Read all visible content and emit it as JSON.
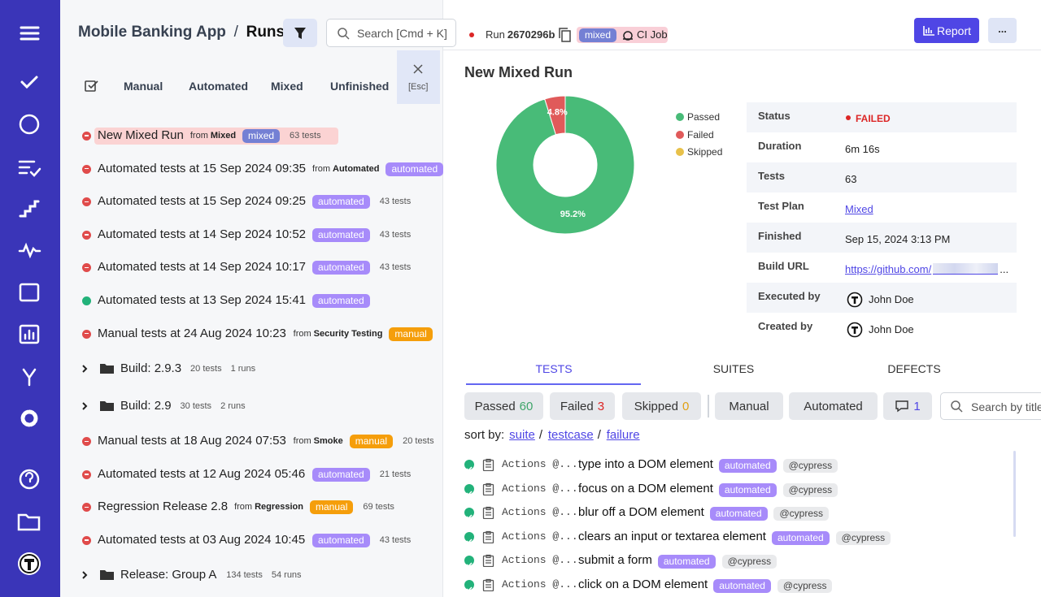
{
  "header": {
    "breadcrumb": [
      "Mobile Banking App",
      "Runs"
    ],
    "separator": "/",
    "search_placeholder": "Search [Cmd + K]"
  },
  "tabs": [
    "Manual",
    "Automated",
    "Mixed",
    "Unfinished"
  ],
  "close_hint": "[Esc]",
  "from_label": "from",
  "runs": [
    {
      "kind": "run",
      "status": "failed",
      "title": "New Mixed Run",
      "from": "Mixed",
      "tag": "mixed",
      "tests": "63 tests",
      "selected": true
    },
    {
      "kind": "run",
      "status": "failed",
      "title": "Automated tests at 15 Sep 2024 09:35",
      "from": "Automated",
      "tag": "automated"
    },
    {
      "kind": "run",
      "status": "failed",
      "title": "Automated tests at 15 Sep 2024 09:25",
      "tag": "automated",
      "tests": "43 tests"
    },
    {
      "kind": "run",
      "status": "failed",
      "title": "Automated tests at 14 Sep 2024 10:52",
      "tag": "automated",
      "tests": "43 tests"
    },
    {
      "kind": "run",
      "status": "failed",
      "title": "Automated tests at 14 Sep 2024 10:17",
      "tag": "automated",
      "tests": "43 tests"
    },
    {
      "kind": "run",
      "status": "passed",
      "title": "Automated tests at 13 Sep 2024 15:41",
      "tag": "automated"
    },
    {
      "kind": "run",
      "status": "failed",
      "title": "Manual tests at 24 Aug 2024 10:23",
      "from": "Security Testing",
      "tag": "manual"
    },
    {
      "kind": "folder",
      "title": "Build: 2.9.3",
      "tests": "20 tests",
      "runs": "1 runs"
    },
    {
      "kind": "folder",
      "title": "Build: 2.9",
      "tests": "30 tests",
      "runs": "2 runs"
    },
    {
      "kind": "run",
      "status": "failed",
      "title": "Manual tests at 18 Aug 2024 07:53",
      "from": "Smoke",
      "tag": "manual",
      "tests": "20 tests"
    },
    {
      "kind": "run",
      "status": "failed",
      "title": "Automated tests at 12 Aug 2024 05:46",
      "tag": "automated",
      "tests": "21 tests"
    },
    {
      "kind": "run",
      "status": "failed",
      "title": "Regression Release 2.8",
      "from": "Regression",
      "tag": "manual",
      "tests": "69 tests"
    },
    {
      "kind": "run",
      "status": "failed",
      "title": "Automated tests at 03 Aug 2024 10:45",
      "tag": "automated",
      "tests": "43 tests"
    },
    {
      "kind": "folder",
      "title": "Release: Group A",
      "tests": "134 tests",
      "runs": "54 runs"
    }
  ],
  "run": {
    "label": "Run",
    "id": "2670296b",
    "tag": "mixed",
    "job": "CI Job",
    "report": "Report",
    "more": "...",
    "title": "New Mixed Run"
  },
  "chart_data": {
    "type": "donut",
    "categories": [
      "Passed",
      "Failed",
      "Skipped"
    ],
    "values": [
      95.2,
      4.8,
      0
    ],
    "value_labels": [
      "95.2%",
      "4.8%",
      null
    ],
    "colors": [
      "#48bb78",
      "#e05a5a",
      "#e8c14a"
    ]
  },
  "details": [
    {
      "label": "Status",
      "value": "FAILED"
    },
    {
      "label": "Duration",
      "value": "6m 16s"
    },
    {
      "label": "Tests",
      "value": 63
    },
    {
      "label": "Test Plan",
      "value": "Mixed"
    },
    {
      "label": "Finished",
      "value": "Sep 15, 2024 3:13 PM"
    },
    {
      "label": "Build URL",
      "value": "https://github.com/",
      "suffix": "..."
    },
    {
      "label": "Executed by",
      "value": "John Doe"
    },
    {
      "label": "Created by",
      "value": "John Doe"
    }
  ],
  "result_tabs": [
    "TESTS",
    "SUITES",
    "DEFECTS"
  ],
  "filters": [
    {
      "label": "Passed",
      "count": 60
    },
    {
      "label": "Failed",
      "count": 3
    },
    {
      "label": "Skipped",
      "count": 0
    },
    {
      "label": "Manual"
    },
    {
      "label": "Automated"
    },
    {
      "count": 1
    }
  ],
  "test_search": "Search by title",
  "sort": {
    "label": "sort by:",
    "options": [
      "suite",
      "testcase",
      "failure"
    ],
    "separator": "/"
  },
  "tests": [
    {
      "suite": "Actions @...",
      "title": "type into a DOM element",
      "tag": "automated",
      "label": "@cypress"
    },
    {
      "suite": "Actions @...",
      "title": "focus on a DOM element",
      "tag": "automated",
      "label": "@cypress"
    },
    {
      "suite": "Actions @...",
      "title": "blur off a DOM element",
      "tag": "automated",
      "label": "@cypress"
    },
    {
      "suite": "Actions @...",
      "title": "clears an input or textarea element",
      "tag": "automated",
      "label": "@cypress"
    },
    {
      "suite": "Actions @...",
      "title": "submit a form",
      "tag": "automated",
      "label": "@cypress"
    },
    {
      "suite": "Actions @...",
      "title": "click on a DOM element",
      "tag": "automated",
      "label": "@cypress"
    }
  ]
}
